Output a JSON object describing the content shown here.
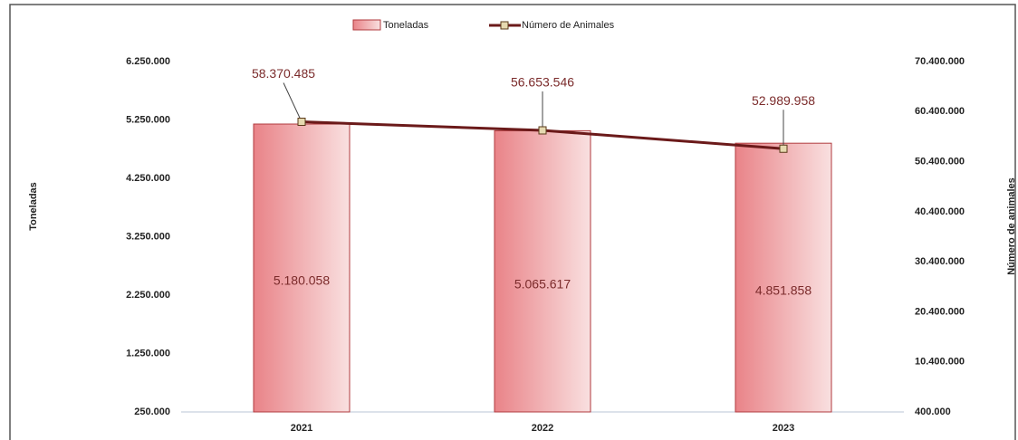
{
  "chart_data": {
    "type": "bar_line",
    "categories": [
      "2021",
      "2022",
      "2023"
    ],
    "series": [
      {
        "name": "Toneladas",
        "type": "bar",
        "color": "#e88a8e",
        "values": [
          5180058,
          5065617,
          4851858
        ],
        "value_labels": [
          "5.180.058",
          "5.065.617",
          "4.851.858"
        ]
      },
      {
        "name": "Número de Animales",
        "type": "line",
        "axis": "y2",
        "color": "#6b1a1a",
        "values": [
          58370485,
          56653546,
          52989958
        ],
        "value_labels": [
          "58.370.485",
          "56.653.546",
          "52.989.958"
        ]
      }
    ],
    "y_label": "Toneladas",
    "y2_label": "Número de animales",
    "ylim": [
      250000,
      6250000
    ],
    "yticks": [
      {
        "value": 250000,
        "label": "250.000"
      },
      {
        "value": 1250000,
        "label": "1.250.000"
      },
      {
        "value": 2250000,
        "label": "2.250.000"
      },
      {
        "value": 3250000,
        "label": "3.250.000"
      },
      {
        "value": 4250000,
        "label": "4.250.000"
      },
      {
        "value": 5250000,
        "label": "5.250.000"
      },
      {
        "value": 6250000,
        "label": "6.250.000"
      }
    ],
    "y2lim": [
      400000,
      70400000
    ],
    "y2ticks": [
      {
        "value": 400000,
        "label": "400.000"
      },
      {
        "value": 10400000,
        "label": "10.400.000"
      },
      {
        "value": 20400000,
        "label": "20.400.000"
      },
      {
        "value": 30400000,
        "label": "30.400.000"
      },
      {
        "value": 40400000,
        "label": "40.400.000"
      },
      {
        "value": 50400000,
        "label": "50.400.000"
      },
      {
        "value": 60400000,
        "label": "60.400.000"
      },
      {
        "value": 70400000,
        "label": "70.400.000"
      }
    ],
    "legend": "top",
    "grid": false
  }
}
